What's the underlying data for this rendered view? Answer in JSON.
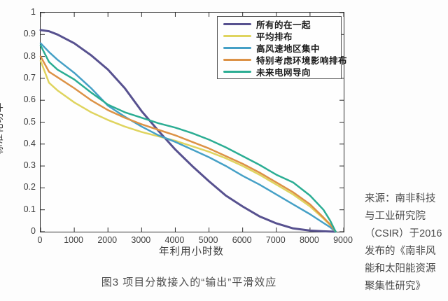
{
  "figure": {
    "caption": "图3 项目分散接入的“输出”平滑效应"
  },
  "source_note": {
    "lines": [
      "来源：南非科技",
      "与工业研究院",
      "（CSIR）于2016",
      "发布的《南非风",
      "能和太阳能资源",
      "聚集性研究》"
    ]
  },
  "chart_data": {
    "type": "line",
    "title": "",
    "xlabel": "年利用小时数",
    "ylabel": "标准化功率",
    "xlim": [
      0,
      9000
    ],
    "ylim": [
      0,
      1
    ],
    "grid": false,
    "legend_position": "top-right",
    "axis_color": "#2b2b2b",
    "tick_length": 6,
    "x_ticks": [
      0,
      1000,
      2000,
      3000,
      4000,
      5000,
      6000,
      7000,
      8000,
      9000
    ],
    "x_tick_labels": [
      "0",
      "1000",
      "2000",
      "3000",
      "4000",
      "5000",
      "6000",
      "7000",
      "8000",
      "9000"
    ],
    "y_ticks": [
      0,
      0.1,
      0.2,
      0.3,
      0.4,
      0.5,
      0.6,
      0.7,
      0.8,
      0.9,
      1
    ],
    "y_tick_labels": [
      "0",
      "0.1",
      "0.2",
      "0.3",
      "0.4",
      "0.5",
      "0.6",
      "0.7",
      "0.8",
      "0.9",
      "1"
    ],
    "x": [
      0,
      250,
      500,
      1000,
      1500,
      2000,
      2500,
      3000,
      3500,
      4000,
      4500,
      5000,
      5500,
      6000,
      6500,
      7000,
      7500,
      8000,
      8400,
      8600,
      8760
    ],
    "series": [
      {
        "name": "所有的在一起",
        "color": "#57518F",
        "stroke_width": 3,
        "values": [
          0.92,
          0.915,
          0.9,
          0.86,
          0.805,
          0.74,
          0.655,
          0.55,
          0.46,
          0.375,
          0.3,
          0.23,
          0.165,
          0.115,
          0.07,
          0.038,
          0.015,
          0.005,
          0.002,
          0.001,
          0
        ]
      },
      {
        "name": "平均排布",
        "color": "#DFD45F",
        "stroke_width": 2.5,
        "values": [
          0.78,
          0.68,
          0.645,
          0.59,
          0.545,
          0.51,
          0.48,
          0.455,
          0.435,
          0.415,
          0.39,
          0.365,
          0.335,
          0.3,
          0.26,
          0.215,
          0.17,
          0.115,
          0.06,
          0.03,
          0
        ]
      },
      {
        "name": "高风速地区集中",
        "color": "#45A0C6",
        "stroke_width": 2.5,
        "values": [
          0.86,
          0.82,
          0.785,
          0.725,
          0.655,
          0.575,
          0.525,
          0.48,
          0.44,
          0.41,
          0.375,
          0.34,
          0.3,
          0.255,
          0.215,
          0.17,
          0.125,
          0.08,
          0.04,
          0.02,
          0
        ]
      },
      {
        "name": "特别考虑环境影响排布",
        "color": "#DC9246",
        "stroke_width": 2.5,
        "values": [
          0.8,
          0.73,
          0.705,
          0.655,
          0.6,
          0.555,
          0.52,
          0.49,
          0.465,
          0.44,
          0.41,
          0.38,
          0.345,
          0.31,
          0.27,
          0.225,
          0.18,
          0.125,
          0.065,
          0.033,
          0
        ]
      },
      {
        "name": "未来电网导向",
        "color": "#2BAD93",
        "stroke_width": 2.5,
        "values": [
          0.85,
          0.775,
          0.74,
          0.695,
          0.635,
          0.58,
          0.545,
          0.52,
          0.495,
          0.475,
          0.45,
          0.42,
          0.385,
          0.345,
          0.305,
          0.26,
          0.225,
          0.165,
          0.1,
          0.05,
          0
        ]
      }
    ]
  }
}
